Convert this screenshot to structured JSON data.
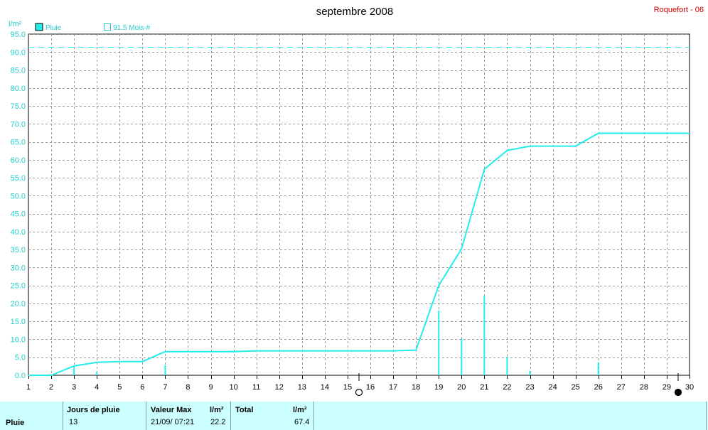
{
  "header": {
    "title": "septembre 2008",
    "station": "Roquefort - 06"
  },
  "legend": {
    "series_label": "Pluie",
    "reference_label": "91.5 Mois-#"
  },
  "colors": {
    "series": "#22eeee",
    "reference": "#22eeee",
    "axis_text": "#22cccc",
    "station": "#cc0000",
    "footer_bg": "#ccffff"
  },
  "chart_data": {
    "type": "line",
    "title": "septembre 2008",
    "ylabel": "l/m²",
    "xlabel": "",
    "xlim": [
      1,
      30
    ],
    "ylim": [
      0,
      95
    ],
    "y_ticks": [
      "0.0",
      "5.0",
      "10.0",
      "15.0",
      "20.0",
      "25.0",
      "30.0",
      "35.0",
      "40.0",
      "45.0",
      "50.0",
      "55.0",
      "60.0",
      "65.0",
      "70.0",
      "75.0",
      "80.0",
      "85.0",
      "90.0",
      "95.0"
    ],
    "x_ticks": [
      "1",
      "2",
      "3",
      "4",
      "5",
      "6",
      "7",
      "8",
      "9",
      "10",
      "11",
      "12",
      "13",
      "14",
      "15",
      "16",
      "17",
      "18",
      "19",
      "20",
      "21",
      "22",
      "23",
      "24",
      "25",
      "26",
      "27",
      "28",
      "29",
      "30"
    ],
    "grid": true,
    "legend_position": "top-left",
    "reference_line": {
      "name": "91.5 Mois-#",
      "value": 91.5
    },
    "cumulative": {
      "name": "Pluie",
      "x": [
        1,
        2,
        3,
        4,
        5,
        6,
        7,
        8,
        9,
        10,
        11,
        12,
        13,
        14,
        15,
        16,
        17,
        18,
        19,
        20,
        21,
        22,
        23,
        24,
        25,
        26,
        27,
        28,
        29,
        30
      ],
      "y": [
        0,
        0,
        2.6,
        3.6,
        3.8,
        3.8,
        6.6,
        6.6,
        6.6,
        6.6,
        6.8,
        6.8,
        6.8,
        6.8,
        6.8,
        6.8,
        6.8,
        7.0,
        25.0,
        35.2,
        57.4,
        62.6,
        63.8,
        63.8,
        63.8,
        67.4,
        67.4,
        67.4,
        67.4,
        67.4
      ]
    },
    "daily": {
      "x": [
        3,
        4,
        7,
        19,
        20,
        21,
        22,
        23,
        26
      ],
      "values": [
        2.6,
        1.0,
        2.8,
        18.0,
        10.2,
        22.2,
        5.2,
        1.2,
        3.6
      ]
    },
    "moon_phases": [
      {
        "day": 15.5,
        "phase": "full"
      },
      {
        "day": 29.5,
        "phase": "new"
      }
    ]
  },
  "footer": {
    "row_label": "Pluie",
    "col_days": "Jours de pluie",
    "days": "13",
    "col_max": "Valeur Max",
    "max_date": "21/09/  07:21",
    "unit1": "l/m²",
    "max_value": "22.2",
    "col_total": "Total",
    "unit2": "l/m²",
    "total": "67.4"
  }
}
